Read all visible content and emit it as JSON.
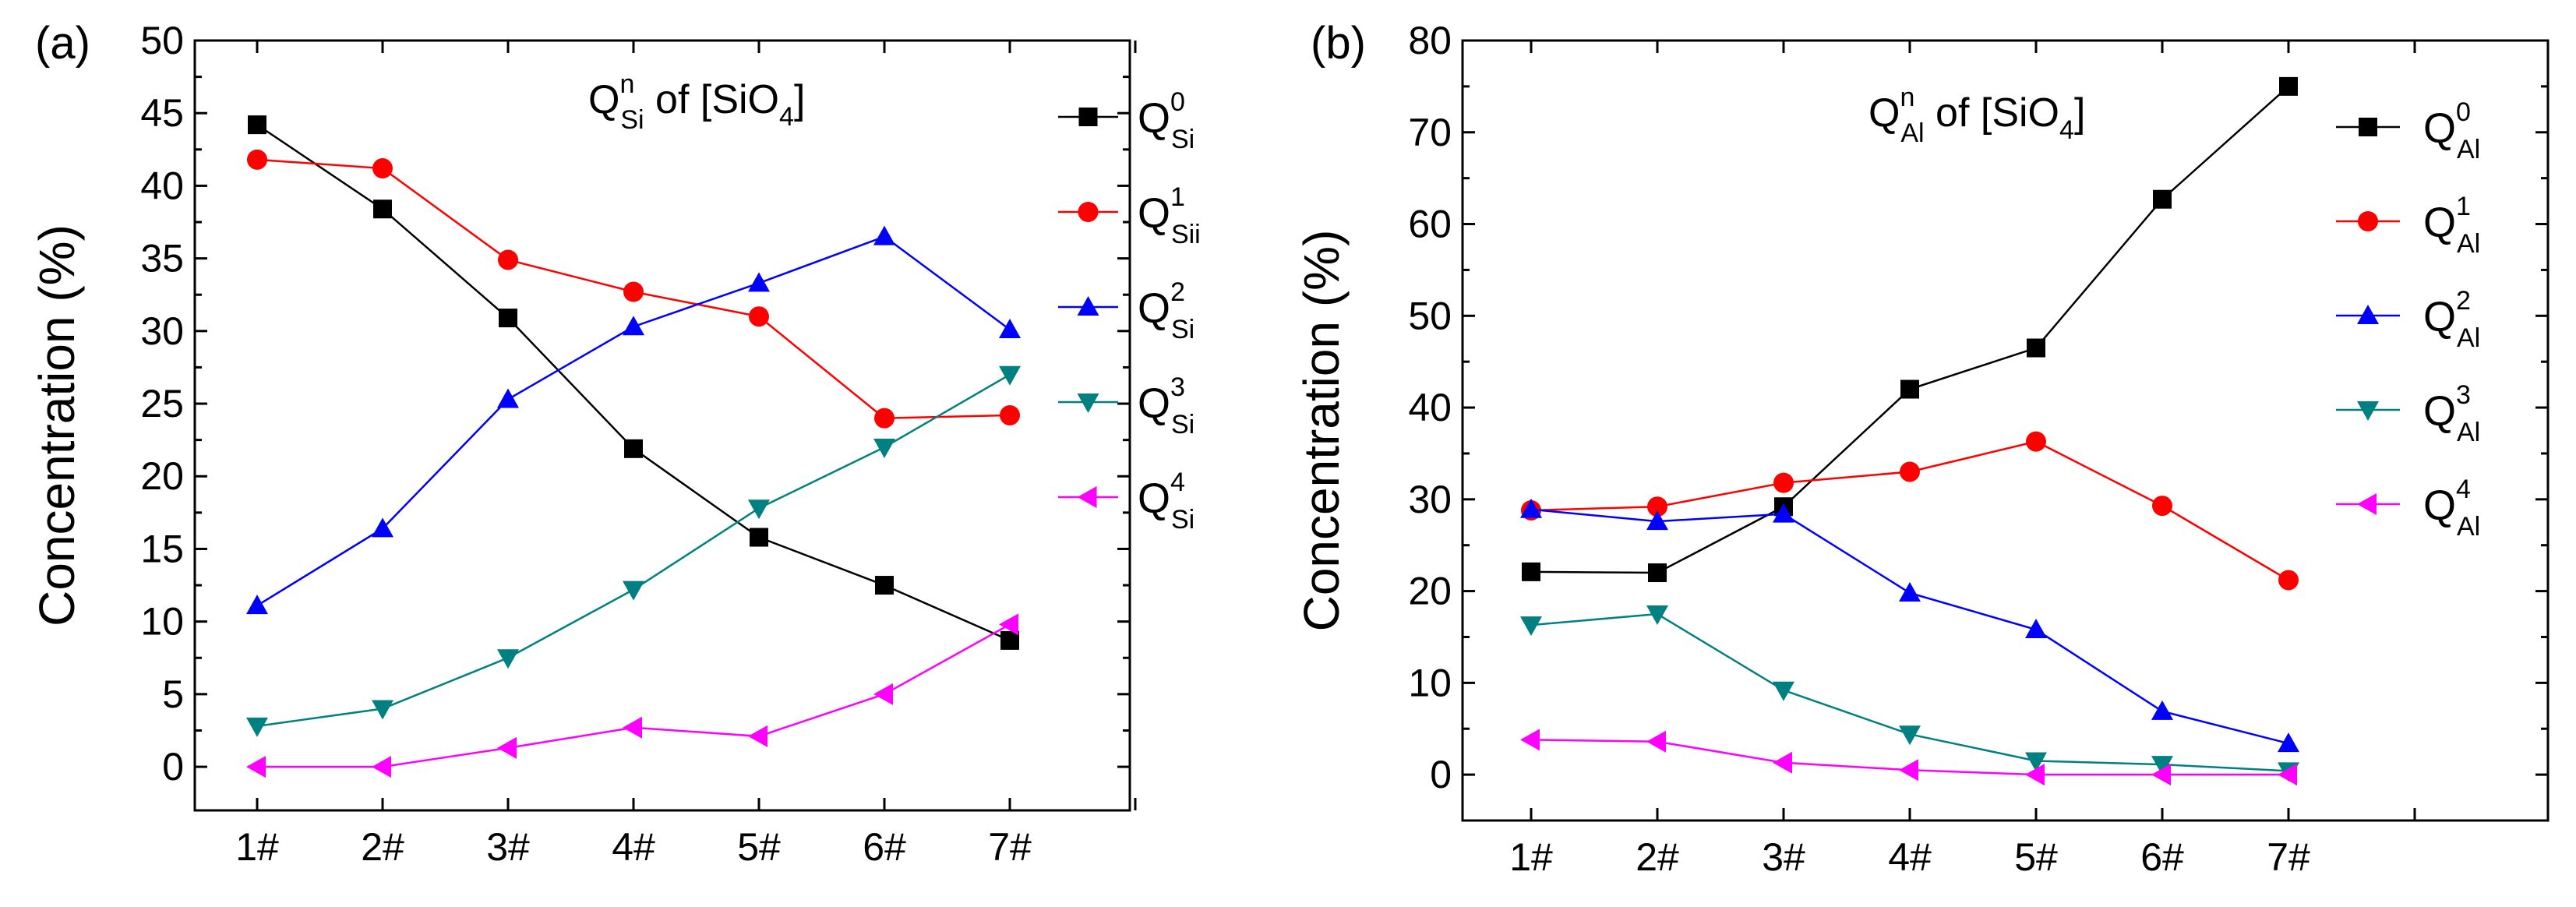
{
  "chart_data": [
    {
      "type": "line",
      "panel_label": "(a)",
      "title_main": "Q",
      "title_sub": "Si",
      "title_sup": "n",
      "title_rest": " of [SiO",
      "title_sub2": "4",
      "title_end": "]",
      "ylabel": "Concentration (%)",
      "xlabel": "",
      "categories": [
        "1#",
        "2#",
        "3#",
        "4#",
        "5#",
        "6#",
        "7#"
      ],
      "ylim": [
        -3,
        50
      ],
      "yticks": [
        0,
        5,
        10,
        15,
        20,
        25,
        30,
        35,
        40,
        45,
        50
      ],
      "ytick_labels": [
        "0",
        "5",
        "10",
        "15",
        "20",
        "25",
        "30",
        "35",
        "40",
        "45",
        "50"
      ],
      "series": [
        {
          "name": "Q",
          "sub": "Si",
          "sup": "0",
          "color": "#000000",
          "marker": "square",
          "values": [
            44.2,
            38.4,
            30.9,
            21.9,
            15.8,
            12.5,
            8.7
          ]
        },
        {
          "name": "Q",
          "sub": "Sii",
          "sup": "1",
          "color": "#ff0000",
          "marker": "circle",
          "values": [
            41.8,
            41.2,
            34.9,
            32.7,
            31.0,
            24.0,
            24.2
          ]
        },
        {
          "name": "Q",
          "sub": "Si",
          "sup": "2",
          "color": "#0000ff",
          "marker": "triangle-up",
          "values": [
            11.1,
            16.4,
            25.3,
            30.3,
            33.3,
            36.5,
            30.1
          ]
        },
        {
          "name": "Q",
          "sub": "Si",
          "sup": "3",
          "color": "#008080",
          "marker": "triangle-down",
          "values": [
            2.8,
            4.0,
            7.5,
            12.2,
            17.8,
            22.0,
            27.0
          ]
        },
        {
          "name": "Q",
          "sub": "Si",
          "sup": "4",
          "color": "#ff00ff",
          "marker": "triangle-left",
          "values": [
            0.0,
            0.0,
            1.3,
            2.7,
            2.1,
            5.0,
            9.8
          ]
        }
      ]
    },
    {
      "type": "line",
      "panel_label": "(b)",
      "title_main": "Q",
      "title_sub": "Al",
      "title_sup": "n",
      "title_rest": " of [SiO",
      "title_sub2": "4",
      "title_end": "]",
      "ylabel": "Concentration (%)",
      "xlabel": "",
      "categories": [
        "1#",
        "2#",
        "3#",
        "4#",
        "5#",
        "6#",
        "7#"
      ],
      "ylim": [
        -5,
        80
      ],
      "yticks": [
        0,
        10,
        20,
        30,
        40,
        50,
        60,
        70,
        80
      ],
      "ytick_labels": [
        "0",
        "10",
        "20",
        "30",
        "40",
        "50",
        "60",
        "70",
        "80"
      ],
      "series": [
        {
          "name": "Q",
          "sub": "Al",
          "sup": "0",
          "color": "#000000",
          "marker": "square",
          "values": [
            22.1,
            22.0,
            29.2,
            42.0,
            46.5,
            62.7,
            75.0
          ]
        },
        {
          "name": "Q",
          "sub": "Al",
          "sup": "1",
          "color": "#ff0000",
          "marker": "circle",
          "values": [
            28.8,
            29.2,
            31.8,
            33.0,
            36.3,
            29.3,
            21.2
          ]
        },
        {
          "name": "Q",
          "sub": "Al",
          "sup": "2",
          "color": "#0000ff",
          "marker": "triangle-up",
          "values": [
            28.9,
            27.6,
            28.4,
            19.8,
            15.8,
            6.9,
            3.4
          ]
        },
        {
          "name": "Q",
          "sub": "Al",
          "sup": "3",
          "color": "#008080",
          "marker": "triangle-down",
          "values": [
            16.3,
            17.5,
            9.2,
            4.4,
            1.5,
            1.1,
            0.4
          ]
        },
        {
          "name": "Q",
          "sub": "Al",
          "sup": "4",
          "color": "#ff00ff",
          "marker": "triangle-left",
          "values": [
            3.8,
            3.6,
            1.3,
            0.5,
            0.0,
            0.0,
            0.0
          ]
        }
      ]
    }
  ]
}
